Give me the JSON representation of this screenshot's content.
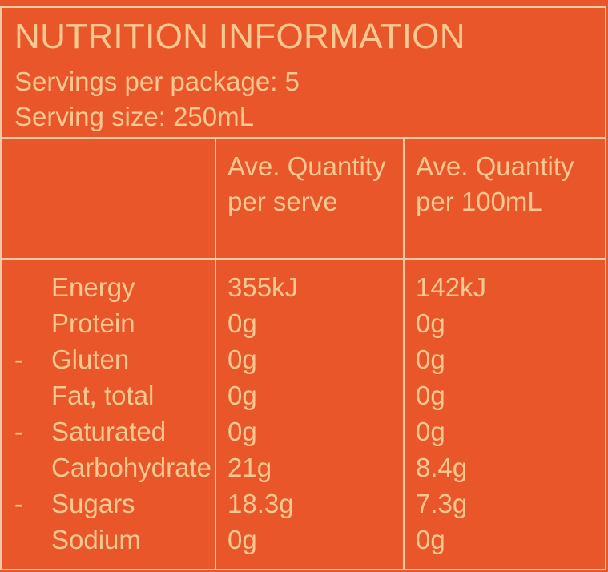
{
  "panel": {
    "title": "NUTRITION INFORMATION",
    "servings_per_package": "Servings per package: 5",
    "serving_size": "Serving size: 250mL"
  },
  "table": {
    "column_headers": [
      "",
      "Ave. Quantity per serve",
      "Ave. Quantity per 100mL"
    ],
    "rows": [
      {
        "dash": "",
        "label": "Energy",
        "per_serve": "355kJ",
        "per_100ml": "142kJ"
      },
      {
        "dash": "",
        "label": "Protein",
        "per_serve": "0g",
        "per_100ml": "0g"
      },
      {
        "dash": "-",
        "label": "Gluten",
        "per_serve": "0g",
        "per_100ml": "0g"
      },
      {
        "dash": "",
        "label": "Fat, total",
        "per_serve": "0g",
        "per_100ml": "0g"
      },
      {
        "dash": "-",
        "label": "Saturated",
        "per_serve": "0g",
        "per_100ml": "0g"
      },
      {
        "dash": "",
        "label": "Carbohydrate",
        "per_serve": "21g",
        "per_100ml": "8.4g"
      },
      {
        "dash": "-",
        "label": "Sugars",
        "per_serve": "18.3g",
        "per_100ml": "7.3g"
      },
      {
        "dash": "",
        "label": "Sodium",
        "per_serve": "0g",
        "per_100ml": "0g"
      }
    ]
  },
  "colors": {
    "background": "#e9562a",
    "text": "#f8c890",
    "rule": "#f3c9a4"
  }
}
